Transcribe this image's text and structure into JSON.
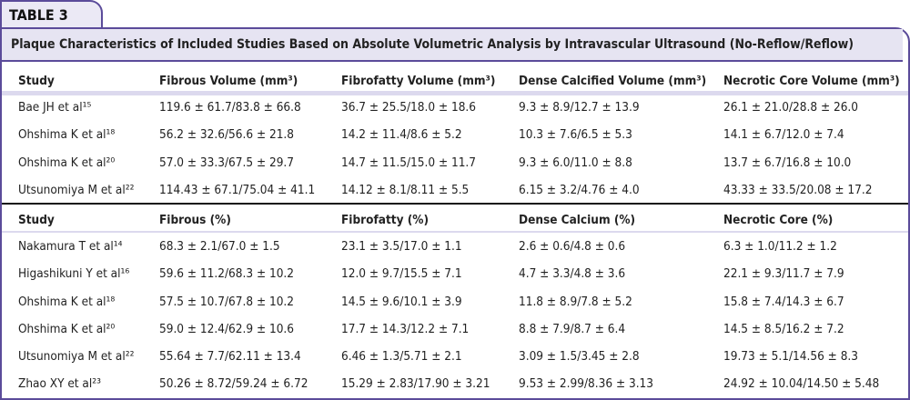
{
  "tab": "TABLE 3",
  "title": "Plaque Characteristics of Included Studies Based on Absolute Volumetric Analysis by Intravascular Ultrasound (No-Reflow/Reflow)",
  "sections": [
    {
      "header": [
        "Study",
        "Fibrous Volume (mm³)",
        "Fibrofatty Volume (mm³)",
        "Dense Calcified Volume (mm³)",
        "Necrotic Core Volume (mm³)"
      ],
      "rows": [
        [
          "Bae JH et al¹⁵",
          "119.6 ± 61.7/83.8 ± 66.8",
          "36.7 ± 25.5/18.0 ± 18.6",
          "9.3 ± 8.9/12.7 ± 13.9",
          "26.1 ± 21.0/28.8 ± 26.0"
        ],
        [
          "Ohshima K et al¹⁸",
          "56.2 ± 32.6/56.6 ± 21.8",
          "14.2 ± 11.4/8.6 ± 5.2",
          "10.3 ± 7.6/6.5 ± 5.3",
          "14.1 ± 6.7/12.0 ± 7.4"
        ],
        [
          "Ohshima K et al²⁰",
          "57.0 ± 33.3/67.5 ± 29.7",
          "14.7 ± 11.5/15.0 ± 11.7",
          "9.3 ± 6.0/11.0 ± 8.8",
          "13.7 ± 6.7/16.8 ± 10.0"
        ],
        [
          "Utsunomiya M et al²²",
          "114.43 ± 67.1/75.04 ± 41.1",
          "14.12 ± 8.1/8.11 ± 5.5",
          "6.15 ± 3.2/4.76 ± 4.0",
          "43.33 ± 33.5/20.08 ± 17.2"
        ]
      ]
    },
    {
      "header": [
        "Study",
        "Fibrous (%)",
        "Fibrofatty (%)",
        "Dense Calcium (%)",
        "Necrotic Core (%)"
      ],
      "rows": [
        [
          "Nakamura T et al¹⁴",
          "68.3 ± 2.1/67.0 ± 1.5",
          "23.1 ± 3.5/17.0 ± 1.1",
          "2.6 ± 0.6/4.8 ± 0.6",
          "6.3 ± 1.0/11.2 ± 1.2"
        ],
        [
          "Higashikuni Y et al¹⁶",
          "59.6 ± 11.2/68.3 ± 10.2",
          "12.0 ± 9.7/15.5 ± 7.1",
          "4.7 ± 3.3/4.8 ± 3.6",
          "22.1 ± 9.3/11.7 ± 7.9"
        ],
        [
          "Ohshima K et al¹⁸",
          "57.5 ± 10.7/67.8 ± 10.2",
          "14.5 ± 9.6/10.1 ± 3.9",
          "11.8 ± 8.9/7.8 ± 5.2",
          "15.8 ± 7.4/14.3 ± 6.7"
        ],
        [
          "Ohshima K et al²⁰",
          "59.0 ± 12.4/62.9 ± 10.6",
          "17.7 ± 14.3/12.2 ± 7.1",
          "8.8 ± 7.9/8.7 ± 6.4",
          "14.5 ± 8.5/16.2 ± 7.2"
        ],
        [
          "Utsunomiya M et al²²",
          "55.64 ± 7.7/62.11 ± 13.4",
          "6.46 ± 1.3/5.71 ± 2.1",
          "3.09 ± 1.5/3.45 ± 2.8",
          "19.73 ± 5.1/14.56 ± 8.3"
        ],
        [
          "Zhao XY et al²³",
          "50.26 ± 8.72/59.24 ± 6.72",
          "15.29 ± 2.83/17.90 ± 3.21",
          "9.53 ± 2.99/8.36 ± 3.13",
          "24.92 ± 10.04/14.50 ± 5.48"
        ]
      ]
    }
  ]
}
